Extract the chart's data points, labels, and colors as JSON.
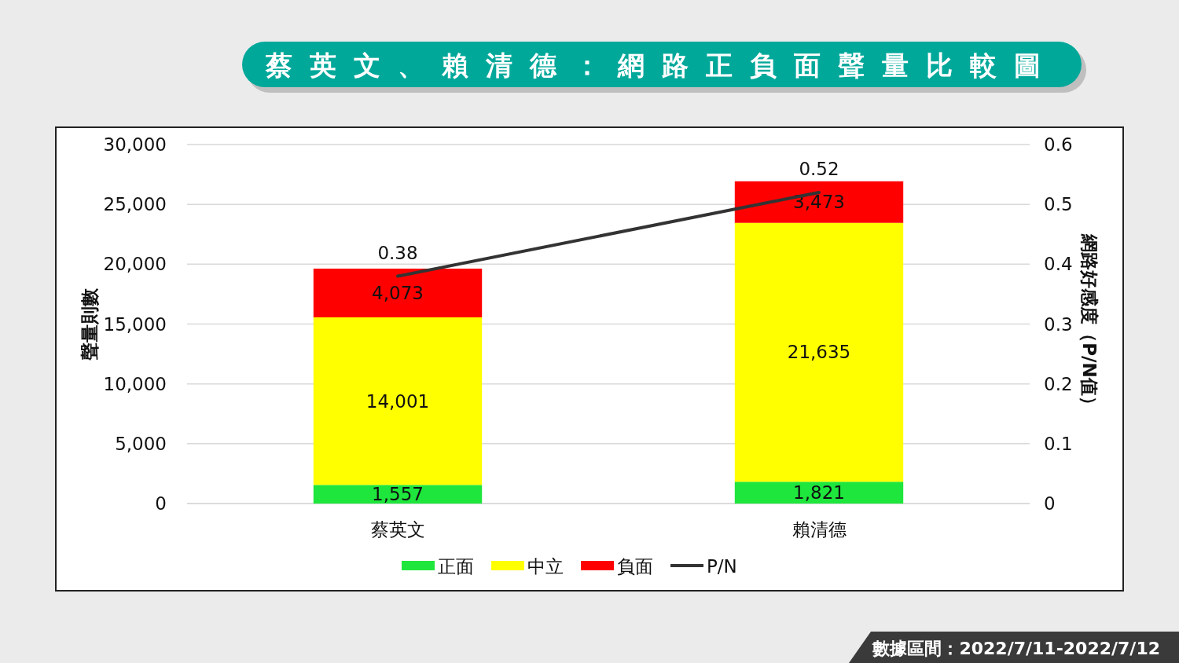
{
  "chart_data": {
    "type": "bar",
    "title": "蔡英文、賴清德：網路正負面聲量比較圖",
    "ylabel": "聲量則數",
    "y2label": "網路好感度（P/N值）",
    "annotations": [
      "數據區間：2022/7/11-2022/7/12"
    ],
    "categories": [
      "蔡英文",
      "賴清德"
    ],
    "stacked": true,
    "grid": "y",
    "legend": "bottom",
    "ylim": [
      0,
      30000
    ],
    "yticks": [
      {
        "value": 0,
        "label": "0"
      },
      {
        "value": 5000,
        "label": "5,000"
      },
      {
        "value": 10000,
        "label": "10,000"
      },
      {
        "value": 15000,
        "label": "15,000"
      },
      {
        "value": 20000,
        "label": "20,000"
      },
      {
        "value": 25000,
        "label": "25,000"
      },
      {
        "value": 30000,
        "label": "30,000"
      }
    ],
    "y2lim": [
      0,
      0.6
    ],
    "y2ticks": [
      0,
      0.1,
      0.2,
      0.3,
      0.4,
      0.5,
      0.6
    ],
    "series": [
      {
        "name": "正面",
        "color": "#1ee63c",
        "values": [
          1557,
          1821
        ],
        "value_labels": [
          "1,557",
          "1,821"
        ]
      },
      {
        "name": "中立",
        "color": "#ffff00",
        "values": [
          14001,
          21635
        ],
        "value_labels": [
          "14,001",
          "21,635"
        ]
      },
      {
        "name": "負面",
        "color": "#ff0000",
        "values": [
          4073,
          3473
        ],
        "value_labels": [
          "4,073",
          "3,473"
        ]
      },
      {
        "name": "P/N",
        "type": "line",
        "axis": "y2",
        "color": "#333333",
        "values": [
          0.38,
          0.52
        ],
        "value_labels": [
          "0.38",
          "0.52"
        ]
      }
    ]
  }
}
